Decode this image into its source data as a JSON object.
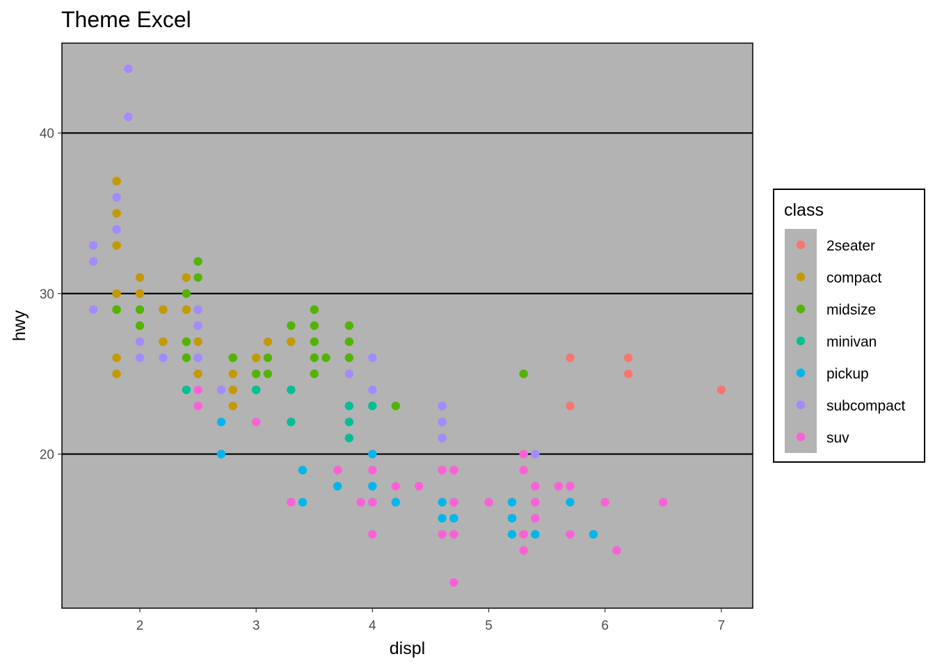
{
  "chart_data": {
    "type": "scatter",
    "title": "Theme Excel",
    "xlabel": "displ",
    "ylabel": "hwy",
    "xlim": [
      1.33,
      7.27
    ],
    "ylim": [
      10.4,
      45.6
    ],
    "xticks": [
      2,
      3,
      4,
      5,
      6,
      7
    ],
    "yticks": [
      20,
      30,
      40
    ],
    "grid": "horizontal major lines",
    "background": "#b3b3b3",
    "legend": {
      "title": "class",
      "placement": "right"
    },
    "series": [
      {
        "name": "2seater",
        "color": "#F8766D",
        "points": [
          [
            5.7,
            26
          ],
          [
            5.7,
            23
          ],
          [
            6.2,
            26
          ],
          [
            6.2,
            25
          ],
          [
            7.0,
            24
          ]
        ]
      },
      {
        "name": "compact",
        "color": "#C49A00",
        "points": [
          [
            1.8,
            37
          ],
          [
            1.8,
            35
          ],
          [
            1.8,
            33
          ],
          [
            1.8,
            30
          ],
          [
            1.8,
            29
          ],
          [
            1.8,
            26
          ],
          [
            1.8,
            25
          ],
          [
            2.0,
            31
          ],
          [
            2.0,
            30
          ],
          [
            2.2,
            29
          ],
          [
            2.2,
            27
          ],
          [
            2.4,
            31
          ],
          [
            2.4,
            29
          ],
          [
            2.4,
            27
          ],
          [
            2.5,
            27
          ],
          [
            2.5,
            25
          ],
          [
            2.8,
            26
          ],
          [
            2.8,
            25
          ],
          [
            2.8,
            24
          ],
          [
            2.8,
            23
          ],
          [
            3.0,
            26
          ],
          [
            3.1,
            27
          ],
          [
            3.3,
            27
          ]
        ]
      },
      {
        "name": "midsize",
        "color": "#53B400",
        "points": [
          [
            1.8,
            29
          ],
          [
            2.0,
            29
          ],
          [
            2.0,
            28
          ],
          [
            2.4,
            30
          ],
          [
            2.4,
            27
          ],
          [
            2.4,
            26
          ],
          [
            2.5,
            32
          ],
          [
            2.5,
            31
          ],
          [
            2.8,
            26
          ],
          [
            3.0,
            25
          ],
          [
            3.1,
            26
          ],
          [
            3.1,
            25
          ],
          [
            3.3,
            28
          ],
          [
            3.5,
            29
          ],
          [
            3.5,
            28
          ],
          [
            3.5,
            27
          ],
          [
            3.5,
            26
          ],
          [
            3.5,
            25
          ],
          [
            3.6,
            26
          ],
          [
            3.8,
            28
          ],
          [
            3.8,
            27
          ],
          [
            3.8,
            26
          ],
          [
            4.2,
            23
          ],
          [
            5.3,
            25
          ]
        ]
      },
      {
        "name": "minivan",
        "color": "#00C094",
        "points": [
          [
            2.4,
            24
          ],
          [
            3.0,
            24
          ],
          [
            3.3,
            24
          ],
          [
            3.3,
            22
          ],
          [
            3.8,
            23
          ],
          [
            3.8,
            22
          ],
          [
            3.8,
            21
          ],
          [
            4.0,
            23
          ]
        ]
      },
      {
        "name": "pickup",
        "color": "#00B6EB",
        "points": [
          [
            2.7,
            22
          ],
          [
            2.7,
            20
          ],
          [
            3.4,
            19
          ],
          [
            3.4,
            17
          ],
          [
            3.7,
            18
          ],
          [
            4.0,
            20
          ],
          [
            4.0,
            18
          ],
          [
            4.0,
            17
          ],
          [
            4.2,
            17
          ],
          [
            4.6,
            17
          ],
          [
            4.6,
            16
          ],
          [
            4.7,
            17
          ],
          [
            4.7,
            16
          ],
          [
            5.2,
            17
          ],
          [
            5.2,
            16
          ],
          [
            5.2,
            15
          ],
          [
            5.4,
            15
          ],
          [
            5.7,
            17
          ],
          [
            5.9,
            15
          ]
        ]
      },
      {
        "name": "subcompact",
        "color": "#A58AFF",
        "points": [
          [
            1.6,
            33
          ],
          [
            1.6,
            32
          ],
          [
            1.6,
            29
          ],
          [
            1.8,
            36
          ],
          [
            1.8,
            34
          ],
          [
            1.9,
            44
          ],
          [
            1.9,
            41
          ],
          [
            2.0,
            27
          ],
          [
            2.0,
            26
          ],
          [
            2.2,
            26
          ],
          [
            2.5,
            29
          ],
          [
            2.5,
            28
          ],
          [
            2.5,
            26
          ],
          [
            2.7,
            24
          ],
          [
            3.8,
            25
          ],
          [
            4.0,
            26
          ],
          [
            4.0,
            24
          ],
          [
            4.6,
            23
          ],
          [
            4.6,
            22
          ],
          [
            4.6,
            21
          ],
          [
            5.4,
            20
          ]
        ]
      },
      {
        "name": "suv",
        "color": "#FB61D7",
        "points": [
          [
            2.5,
            24
          ],
          [
            2.5,
            23
          ],
          [
            3.0,
            22
          ],
          [
            3.3,
            17
          ],
          [
            3.7,
            19
          ],
          [
            3.9,
            17
          ],
          [
            4.0,
            19
          ],
          [
            4.0,
            17
          ],
          [
            4.0,
            15
          ],
          [
            4.2,
            18
          ],
          [
            4.4,
            18
          ],
          [
            4.6,
            19
          ],
          [
            4.6,
            15
          ],
          [
            4.7,
            19
          ],
          [
            4.7,
            17
          ],
          [
            4.7,
            15
          ],
          [
            4.7,
            12
          ],
          [
            5.0,
            17
          ],
          [
            5.3,
            20
          ],
          [
            5.3,
            19
          ],
          [
            5.3,
            15
          ],
          [
            5.3,
            14
          ],
          [
            5.4,
            18
          ],
          [
            5.4,
            17
          ],
          [
            5.4,
            16
          ],
          [
            5.6,
            18
          ],
          [
            5.7,
            18
          ],
          [
            5.7,
            15
          ],
          [
            6.0,
            17
          ],
          [
            6.1,
            14
          ],
          [
            6.5,
            17
          ]
        ]
      }
    ]
  }
}
